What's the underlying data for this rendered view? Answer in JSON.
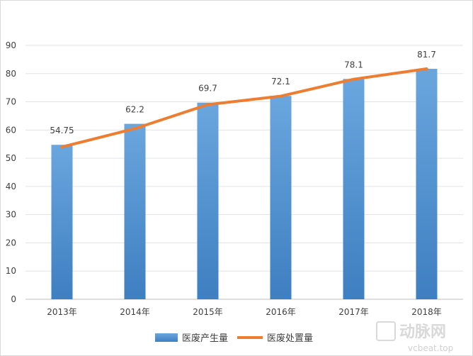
{
  "chart_data": {
    "type": "bar",
    "categories": [
      "2013年",
      "2014年",
      "2015年",
      "2016年",
      "2017年",
      "2018年"
    ],
    "series": [
      {
        "name": "医废产生量",
        "type": "bar",
        "values": [
          54.75,
          62.2,
          69.7,
          72.1,
          78.1,
          81.7
        ],
        "color": "#5b9bd5"
      },
      {
        "name": "医废处置量",
        "type": "line",
        "values": [
          54.0,
          60.5,
          69.0,
          72.0,
          78.0,
          81.7
        ],
        "color": "#ed7d31"
      }
    ],
    "data_labels": [
      "54.75",
      "62.2",
      "69.7",
      "72.1",
      "78.1",
      "81.7"
    ],
    "ylim": [
      0,
      90
    ],
    "yticks": [
      0,
      10,
      20,
      30,
      40,
      50,
      60,
      70,
      80,
      90
    ],
    "grid": true,
    "legend_position": "bottom"
  },
  "watermark": {
    "logo_text": "动脉网",
    "site_text": "vcbeat.top"
  }
}
